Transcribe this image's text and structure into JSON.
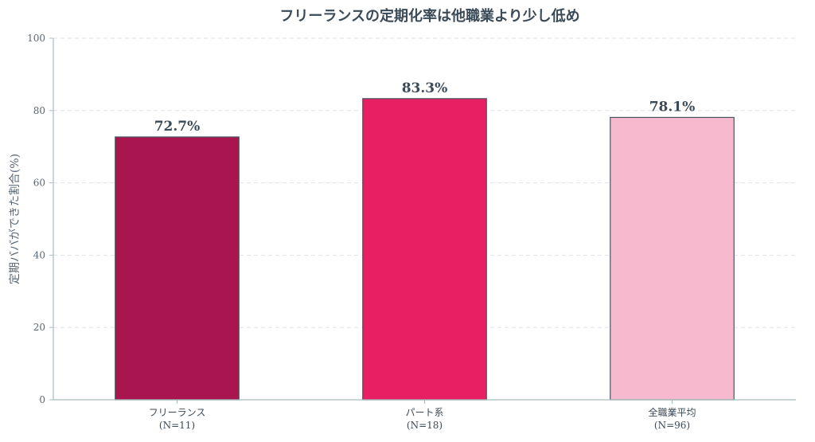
{
  "chart_data": {
    "type": "bar",
    "title": "フリーランスの定期化率は他職業より少し低め",
    "xlabel": "",
    "ylabel": "定期ババができた割合(%)",
    "ylim": [
      0,
      100
    ],
    "yticks": [
      0,
      20,
      40,
      60,
      80,
      100
    ],
    "grid": "horizontal-dashed",
    "categories": [
      {
        "label": "フリーランス",
        "sublabel": "(N=11)"
      },
      {
        "label": "パート系",
        "sublabel": "(N=18)"
      },
      {
        "label": "全職業平均",
        "sublabel": "(N=96)"
      }
    ],
    "values": [
      72.7,
      83.3,
      78.1
    ],
    "data_labels": [
      "72.7%",
      "83.3%",
      "78.1%"
    ],
    "colors": [
      "#a8154f",
      "#e82063",
      "#f7b9cd"
    ],
    "edge_color": "#4a5560",
    "axis_color": "#a9bcc0",
    "grid_color": "#dde3e6"
  }
}
